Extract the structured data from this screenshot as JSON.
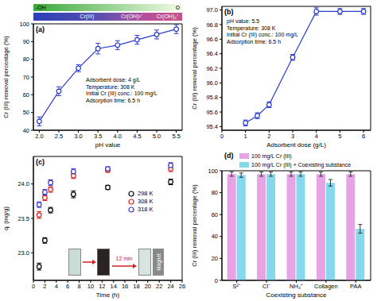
{
  "chart_data": [
    {
      "type": "line",
      "title": "(a)",
      "x_label": "pH value",
      "y_label": "Cr (III) removal percentage (%)",
      "x": [
        2.0,
        2.5,
        3.0,
        3.5,
        4.0,
        4.5,
        5.0,
        5.5
      ],
      "values": [
        45,
        62,
        75,
        86,
        88,
        91,
        94,
        97
      ],
      "errors": [
        2.5,
        2.5,
        2,
        3,
        2.5,
        2.5,
        2.5,
        2.5
      ],
      "color": "#2b3fcf",
      "marker": "o",
      "xlim": [
        1.85,
        5.65
      ],
      "xticks": [
        {
          "value": 2,
          "label": "2.0"
        },
        {
          "value": 2.5,
          "label": "2.5"
        },
        {
          "value": 3,
          "label": "3.0"
        },
        {
          "value": 3.5,
          "label": "3.5"
        },
        {
          "value": 4,
          "label": "4.0"
        },
        {
          "value": 4.5,
          "label": "4.5"
        },
        {
          "value": 5,
          "label": "5.0"
        },
        {
          "value": 5.5,
          "label": "5.5"
        }
      ],
      "ylim": [
        40,
        100
      ],
      "yticks": [
        40,
        50,
        60,
        70,
        80,
        90,
        100
      ],
      "annotations": [
        "Adsorbent dose: 4 g/L",
        "Temperature: 308 K",
        "Initial Cr (III) conc.: 100 mg/L",
        "Adsorption time: 6.5 h"
      ],
      "species": {
        "top": "-OH",
        "bottom": [
          "Cr(III)",
          "Cr(OH)²⁺",
          "Cr(OH)₂⁺"
        ]
      }
    },
    {
      "type": "line",
      "title": "(b)",
      "x_label": "Adsorbent dose (g/L)",
      "y_label": "Cr (III) removal percentage (%)",
      "x": [
        1,
        1.5,
        2,
        3,
        4,
        5,
        6
      ],
      "values": [
        95.45,
        95.55,
        95.7,
        96.35,
        96.98,
        96.98,
        96.98
      ],
      "errors": [
        0.04,
        0.04,
        0.04,
        0.04,
        0.05,
        0.04,
        0.04
      ],
      "color": "#2b3fcf",
      "marker": "o",
      "xlim": [
        0,
        6.3
      ],
      "xticks": [
        0,
        1,
        2,
        3,
        4,
        5,
        6
      ],
      "ylim": [
        95.35,
        97.05
      ],
      "yticks": [
        95.4,
        95.6,
        95.8,
        {
          "value": 96,
          "label": "96.0"
        },
        96.2,
        96.4,
        96.6,
        96.8,
        {
          "value": 97,
          "label": "97.0"
        }
      ],
      "annotations": [
        "pH value: 5.5",
        "Temperature: 308 K",
        "Initial Cr (III) conc.: 100 mg/L",
        "Adsorption time: 6.5 h"
      ]
    },
    {
      "type": "scatter",
      "title": "(c)",
      "x_label": "Time (h)",
      "y_label": "qₜ (mg/g)",
      "x": [
        1,
        2,
        3,
        7,
        13,
        24
      ],
      "series": [
        {
          "name": "298 K",
          "color": "#000000",
          "marker": "o",
          "values": [
            22.8,
            23.18,
            23.62,
            23.85,
            23.95,
            24.03
          ],
          "errors": [
            0.05,
            0.04,
            0.04,
            0.05,
            0.03,
            0.04
          ]
        },
        {
          "name": "308 K",
          "color": "#e0201a",
          "marker": "o",
          "values": [
            23.55,
            23.8,
            23.92,
            24.12,
            24.2,
            24.22
          ],
          "errors": [
            0.05,
            0.04,
            0.04,
            0.04,
            0.03,
            0.04
          ]
        },
        {
          "name": "318 K",
          "color": "#3a3ad0",
          "marker": "o",
          "values": [
            23.7,
            23.88,
            24.02,
            24.18,
            24.22,
            24.27
          ],
          "errors": [
            0.04,
            0.04,
            0.04,
            0.04,
            0.03,
            0.04
          ]
        }
      ],
      "xlim": [
        0,
        26
      ],
      "xticks": [
        0,
        2,
        4,
        6,
        8,
        10,
        12,
        14,
        16,
        18,
        20,
        22,
        24,
        26
      ],
      "ylim": [
        22.6,
        24.4
      ],
      "yticks": [
        {
          "value": 23,
          "label": "23.0"
        },
        23.5,
        {
          "value": 24,
          "label": "24.0"
        }
      ],
      "legend": "right",
      "annotations": [
        "12 min",
        "Magnet"
      ]
    },
    {
      "type": "bar",
      "title": "(d)",
      "x_label": "Coexisting substance",
      "y_label": "Cr (III) removal percentage (%)",
      "categories": [
        "S²⁻",
        "Cl⁻",
        "NH₄⁺",
        "Collagen",
        "PAA"
      ],
      "series": [
        {
          "name": "100 mg/L Cr (III)",
          "color": "#e6a3e6",
          "values": [
            97,
            97,
            97,
            97,
            97
          ],
          "errors": [
            2,
            2,
            2,
            2,
            2
          ]
        },
        {
          "name": "100 mg/L Cr (III) + Coexisting substance",
          "color": "#86d9ec",
          "values": [
            96,
            97,
            97,
            89,
            47
          ],
          "errors": [
            2,
            2,
            2,
            3,
            4
          ]
        }
      ],
      "ylim": [
        0,
        100
      ],
      "yticks": [
        0,
        20,
        40,
        60,
        80,
        100
      ],
      "legend": "top"
    }
  ]
}
